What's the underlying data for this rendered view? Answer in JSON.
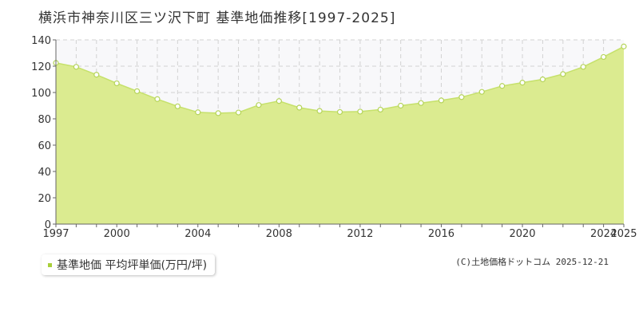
{
  "title": "横浜市神奈川区三ツ沢下町 基準地価推移[1997-2025]",
  "legend": {
    "label": "基準地価 平均坪単価(万円/坪)"
  },
  "copyright": "(C)土地価格ドットコム 2025-12-21",
  "colors": {
    "area_fill": "#dbeb90",
    "line": "#c6e16b",
    "marker_fill": "#ffffff",
    "marker_stroke": "#b5d45a",
    "legend_marker": "#a8cf3a",
    "plot_background": "#f8f8fa",
    "grid": "#d2d2d2",
    "axis": "#666666"
  },
  "chart_data": {
    "type": "area",
    "title": "横浜市神奈川区三ツ沢下町 基準地価推移[1997-2025]",
    "xlabel": "",
    "ylabel": "",
    "xlim": [
      1997,
      2025
    ],
    "ylim": [
      0,
      140
    ],
    "x_ticks": [
      1997,
      2000,
      2004,
      2008,
      2012,
      2016,
      2020,
      2024,
      2025
    ],
    "y_ticks": [
      0,
      20,
      40,
      60,
      80,
      100,
      120,
      140
    ],
    "grid": true,
    "legend_position": "bottom-left",
    "series": [
      {
        "name": "基準地価 平均坪単価(万円/坪)",
        "x": [
          1997,
          1998,
          1999,
          2000,
          2001,
          2002,
          2003,
          2004,
          2005,
          2006,
          2007,
          2008,
          2009,
          2010,
          2011,
          2012,
          2013,
          2014,
          2015,
          2016,
          2017,
          2018,
          2019,
          2020,
          2021,
          2022,
          2023,
          2024,
          2025
        ],
        "values": [
          122.5,
          119.5,
          113.5,
          107,
          101,
          95,
          89.5,
          85,
          84.3,
          84.8,
          90.5,
          93.5,
          88.5,
          86,
          85.2,
          85.5,
          87,
          90,
          92,
          94,
          96.5,
          100.5,
          105,
          107.5,
          110,
          114,
          119.5,
          127,
          135
        ]
      }
    ]
  }
}
